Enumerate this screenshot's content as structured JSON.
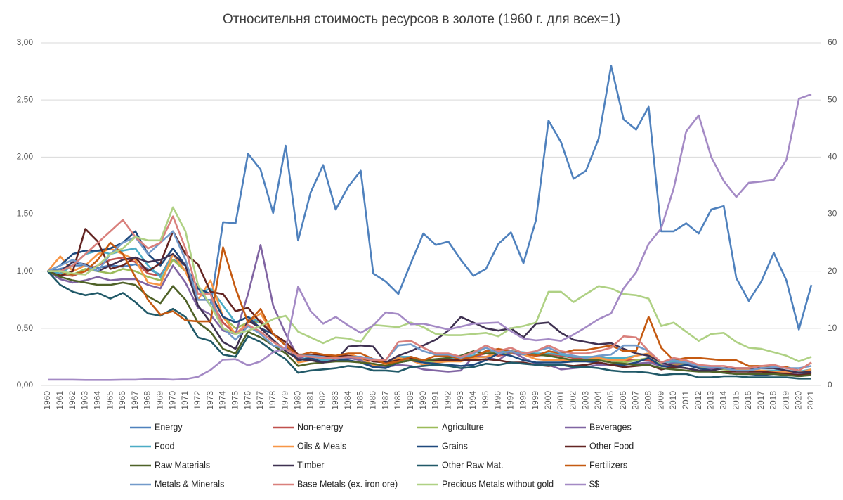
{
  "chart_data": {
    "type": "line",
    "title": "Относительня стоимость ресурсов в золоте (1960 г. для всех=1)",
    "categories": [
      "1960",
      "1961",
      "1962",
      "1963",
      "1964",
      "1965",
      "1966",
      "1967",
      "1968",
      "1969",
      "1970",
      "1971",
      "1972",
      "1973",
      "1974",
      "1975",
      "1976",
      "1977",
      "1978",
      "1979",
      "1980",
      "1981",
      "1982",
      "1983",
      "1984",
      "1985",
      "1986",
      "1987",
      "1988",
      "1989",
      "1990",
      "1991",
      "1992",
      "1993",
      "1994",
      "1995",
      "1996",
      "1997",
      "1998",
      "1999",
      "2000",
      "2001",
      "2002",
      "2003",
      "2004",
      "2005",
      "2006",
      "2007",
      "2008",
      "2009",
      "2010",
      "2011",
      "2012",
      "2013",
      "2014",
      "2015",
      "2016",
      "2017",
      "2018",
      "2019",
      "2020",
      "2021"
    ],
    "ylim": [
      0,
      3
    ],
    "yticks": [
      {
        "value": 0,
        "label": "0,00"
      },
      {
        "value": 0.5,
        "label": "0,50"
      },
      {
        "value": 1,
        "label": "1,00"
      },
      {
        "value": 1.5,
        "label": "1,50"
      },
      {
        "value": 2,
        "label": "2,00"
      },
      {
        "value": 2.5,
        "label": "2,50"
      },
      {
        "value": 3,
        "label": "3,00"
      }
    ],
    "y2lim": [
      0,
      60
    ],
    "y2ticks": [
      0,
      10,
      20,
      30,
      40,
      50,
      60
    ],
    "grid": true,
    "legend": "bottom",
    "series": [
      {
        "name": "Energy",
        "color": "#4f81bd",
        "values": [
          1,
          1.02,
          1.05,
          1.05,
          1.03,
          1.05,
          1.04,
          1.06,
          1.02,
          0.97,
          1.1,
          1.05,
          0.85,
          0.7,
          1.43,
          1.42,
          2.03,
          1.89,
          1.51,
          2.1,
          1.27,
          1.69,
          1.93,
          1.54,
          1.74,
          1.88,
          0.98,
          0.91,
          0.8,
          1.07,
          1.33,
          1.23,
          1.26,
          1.1,
          0.96,
          1.02,
          1.24,
          1.34,
          1.07,
          1.45,
          2.32,
          2.13,
          1.81,
          1.88,
          2.16,
          2.8,
          2.33,
          2.24,
          2.44,
          1.35,
          1.35,
          1.42,
          1.33,
          1.54,
          1.57,
          0.94,
          0.74,
          0.91,
          1.16,
          0.92,
          0.49,
          0.88
        ]
      },
      {
        "name": "Non-energy",
        "color": "#c0504d",
        "values": [
          1,
          0.97,
          0.96,
          1,
          1.05,
          1.1,
          1.12,
          1.08,
          0.98,
          0.96,
          1.15,
          1,
          0.75,
          0.75,
          0.55,
          0.45,
          0.55,
          0.57,
          0.45,
          0.35,
          0.23,
          0.24,
          0.22,
          0.24,
          0.25,
          0.24,
          0.22,
          0.2,
          0.24,
          0.25,
          0.22,
          0.22,
          0.23,
          0.22,
          0.25,
          0.28,
          0.26,
          0.28,
          0.27,
          0.26,
          0.27,
          0.26,
          0.24,
          0.24,
          0.25,
          0.24,
          0.22,
          0.22,
          0.22,
          0.17,
          0.18,
          0.18,
          0.15,
          0.15,
          0.15,
          0.13,
          0.13,
          0.13,
          0.13,
          0.12,
          0.11,
          0.13
        ]
      },
      {
        "name": "Agriculture",
        "color": "#9bbb59",
        "values": [
          1,
          0.98,
          0.97,
          1.02,
          1,
          0.98,
          1.02,
          1,
          0.95,
          0.92,
          1.1,
          1,
          0.8,
          0.8,
          0.6,
          0.5,
          0.55,
          0.55,
          0.45,
          0.35,
          0.22,
          0.24,
          0.22,
          0.23,
          0.24,
          0.23,
          0.22,
          0.2,
          0.22,
          0.22,
          0.21,
          0.21,
          0.22,
          0.23,
          0.26,
          0.3,
          0.28,
          0.29,
          0.28,
          0.27,
          0.26,
          0.24,
          0.22,
          0.22,
          0.23,
          0.22,
          0.2,
          0.22,
          0.24,
          0.18,
          0.19,
          0.19,
          0.16,
          0.15,
          0.14,
          0.13,
          0.12,
          0.12,
          0.12,
          0.12,
          0.11,
          0.13
        ]
      },
      {
        "name": "Beverages",
        "color": "#8064a2",
        "values": [
          1,
          0.93,
          0.9,
          0.92,
          0.95,
          0.92,
          0.93,
          0.93,
          0.88,
          0.85,
          1.05,
          0.9,
          0.68,
          0.62,
          0.48,
          0.45,
          0.8,
          1.23,
          0.7,
          0.45,
          0.25,
          0.22,
          0.22,
          0.22,
          0.24,
          0.22,
          0.17,
          0.16,
          0.18,
          0.17,
          0.14,
          0.13,
          0.12,
          0.13,
          0.25,
          0.25,
          0.22,
          0.3,
          0.24,
          0.19,
          0.18,
          0.14,
          0.15,
          0.16,
          0.18,
          0.18,
          0.18,
          0.19,
          0.2,
          0.17,
          0.2,
          0.2,
          0.15,
          0.14,
          0.15,
          0.13,
          0.12,
          0.12,
          0.11,
          0.11,
          0.1,
          0.12
        ]
      },
      {
        "name": "Food",
        "color": "#4bacc6",
        "values": [
          1,
          0.98,
          1.05,
          1.15,
          1.18,
          1.15,
          1.18,
          1.2,
          1.05,
          0.95,
          1.15,
          1,
          0.8,
          0.85,
          0.7,
          0.55,
          0.6,
          0.55,
          0.45,
          0.38,
          0.22,
          0.25,
          0.22,
          0.23,
          0.25,
          0.25,
          0.22,
          0.2,
          0.25,
          0.25,
          0.22,
          0.22,
          0.23,
          0.24,
          0.26,
          0.3,
          0.3,
          0.3,
          0.29,
          0.28,
          0.28,
          0.27,
          0.25,
          0.25,
          0.25,
          0.24,
          0.24,
          0.26,
          0.28,
          0.2,
          0.21,
          0.2,
          0.17,
          0.16,
          0.15,
          0.14,
          0.14,
          0.13,
          0.13,
          0.13,
          0.12,
          0.14
        ]
      },
      {
        "name": "Oils & Meals",
        "color": "#f79646",
        "values": [
          1,
          1.13,
          1,
          1.05,
          1.15,
          1.2,
          1.15,
          1.1,
          0.9,
          0.88,
          1.15,
          1,
          0.75,
          0.92,
          0.6,
          0.45,
          0.55,
          0.63,
          0.45,
          0.38,
          0.2,
          0.22,
          0.2,
          0.22,
          0.28,
          0.24,
          0.18,
          0.18,
          0.24,
          0.22,
          0.18,
          0.2,
          0.21,
          0.21,
          0.24,
          0.25,
          0.28,
          0.3,
          0.27,
          0.23,
          0.22,
          0.22,
          0.22,
          0.23,
          0.24,
          0.22,
          0.22,
          0.26,
          0.28,
          0.2,
          0.22,
          0.21,
          0.18,
          0.16,
          0.15,
          0.14,
          0.14,
          0.13,
          0.12,
          0.12,
          0.11,
          0.14
        ]
      },
      {
        "name": "Grains",
        "color": "#1f497d",
        "values": [
          1,
          1.05,
          1.15,
          1.18,
          1.18,
          1.2,
          1.25,
          1.35,
          1.15,
          1.05,
          1.2,
          1.05,
          0.85,
          0.8,
          0.6,
          0.55,
          0.6,
          0.5,
          0.45,
          0.35,
          0.22,
          0.24,
          0.2,
          0.22,
          0.22,
          0.2,
          0.16,
          0.15,
          0.2,
          0.22,
          0.2,
          0.19,
          0.18,
          0.17,
          0.18,
          0.22,
          0.28,
          0.26,
          0.22,
          0.2,
          0.2,
          0.2,
          0.21,
          0.21,
          0.2,
          0.18,
          0.18,
          0.2,
          0.24,
          0.17,
          0.16,
          0.18,
          0.15,
          0.13,
          0.11,
          0.1,
          0.1,
          0.09,
          0.1,
          0.1,
          0.09,
          0.11
        ]
      },
      {
        "name": "Other Food",
        "color": "#632523",
        "values": [
          1,
          0.96,
          1,
          1.37,
          1.26,
          1.02,
          1.05,
          1.12,
          1,
          1.07,
          1.35,
          1.15,
          1.06,
          0.82,
          0.8,
          0.65,
          0.68,
          0.55,
          0.45,
          0.38,
          0.27,
          0.27,
          0.26,
          0.26,
          0.26,
          0.24,
          0.21,
          0.2,
          0.22,
          0.24,
          0.22,
          0.22,
          0.22,
          0.22,
          0.22,
          0.23,
          0.22,
          0.2,
          0.2,
          0.18,
          0.17,
          0.18,
          0.17,
          0.18,
          0.2,
          0.18,
          0.16,
          0.17,
          0.18,
          0.14,
          0.16,
          0.15,
          0.13,
          0.12,
          0.12,
          0.12,
          0.12,
          0.12,
          0.11,
          0.1,
          0.09,
          0.1
        ]
      },
      {
        "name": "Raw Materials",
        "color": "#4f6228",
        "values": [
          1,
          0.95,
          0.92,
          0.9,
          0.88,
          0.88,
          0.9,
          0.88,
          0.78,
          0.72,
          0.87,
          0.75,
          0.55,
          0.47,
          0.32,
          0.28,
          0.47,
          0.42,
          0.35,
          0.28,
          0.17,
          0.19,
          0.2,
          0.21,
          0.21,
          0.2,
          0.19,
          0.17,
          0.2,
          0.22,
          0.22,
          0.23,
          0.24,
          0.26,
          0.3,
          0.28,
          0.28,
          0.3,
          0.28,
          0.27,
          0.26,
          0.24,
          0.22,
          0.22,
          0.22,
          0.2,
          0.19,
          0.18,
          0.18,
          0.15,
          0.14,
          0.13,
          0.12,
          0.12,
          0.11,
          0.1,
          0.1,
          0.1,
          0.1,
          0.09,
          0.08,
          0.09
        ]
      },
      {
        "name": "Timber",
        "color": "#3f3151",
        "values": [
          1,
          1,
          1.08,
          1.06,
          1,
          1.05,
          1.1,
          1.12,
          1.08,
          1.1,
          1.15,
          1.05,
          0.7,
          0.55,
          0.38,
          0.32,
          0.57,
          0.5,
          0.4,
          0.3,
          0.23,
          0.22,
          0.2,
          0.22,
          0.34,
          0.35,
          0.34,
          0.2,
          0.26,
          0.3,
          0.35,
          0.4,
          0.48,
          0.6,
          0.55,
          0.5,
          0.48,
          0.5,
          0.42,
          0.54,
          0.55,
          0.46,
          0.4,
          0.38,
          0.36,
          0.37,
          0.32,
          0.28,
          0.26,
          0.2,
          0.17,
          0.15,
          0.13,
          0.13,
          0.15,
          0.15,
          0.15,
          0.15,
          0.15,
          0.13,
          0.11,
          0.12
        ]
      },
      {
        "name": "Other Raw Mat.",
        "color": "#215968",
        "values": [
          1,
          0.88,
          0.82,
          0.79,
          0.81,
          0.76,
          0.81,
          0.73,
          0.63,
          0.61,
          0.67,
          0.6,
          0.42,
          0.39,
          0.27,
          0.25,
          0.43,
          0.38,
          0.3,
          0.23,
          0.11,
          0.13,
          0.14,
          0.15,
          0.17,
          0.16,
          0.13,
          0.13,
          0.12,
          0.16,
          0.17,
          0.18,
          0.17,
          0.15,
          0.16,
          0.19,
          0.18,
          0.2,
          0.19,
          0.18,
          0.18,
          0.18,
          0.16,
          0.16,
          0.15,
          0.13,
          0.12,
          0.12,
          0.11,
          0.09,
          0.1,
          0.1,
          0.07,
          0.07,
          0.08,
          0.08,
          0.07,
          0.07,
          0.07,
          0.07,
          0.06,
          0.06
        ]
      },
      {
        "name": "Fertilizers",
        "color": "#c55a11",
        "values": [
          1,
          1,
          0.97,
          1,
          1.1,
          1.25,
          1.15,
          0.95,
          0.75,
          0.62,
          0.65,
          0.57,
          0.56,
          0.56,
          1.21,
          0.85,
          0.55,
          0.67,
          0.45,
          0.35,
          0.26,
          0.29,
          0.27,
          0.26,
          0.28,
          0.28,
          0.23,
          0.19,
          0.21,
          0.25,
          0.22,
          0.26,
          0.26,
          0.23,
          0.25,
          0.3,
          0.32,
          0.3,
          0.28,
          0.26,
          0.3,
          0.28,
          0.31,
          0.31,
          0.33,
          0.35,
          0.3,
          0.3,
          0.6,
          0.33,
          0.22,
          0.24,
          0.24,
          0.23,
          0.22,
          0.22,
          0.17,
          0.17,
          0.17,
          0.16,
          0.13,
          0.2
        ]
      },
      {
        "name": "Metals  & Minerals",
        "color": "#729aca",
        "values": [
          1,
          1.05,
          1.1,
          1.05,
          1,
          1.15,
          1.25,
          1.3,
          1.15,
          1.25,
          1.35,
          1.1,
          0.75,
          0.75,
          0.5,
          0.4,
          0.52,
          0.45,
          0.35,
          0.32,
          0.26,
          0.26,
          0.25,
          0.23,
          0.25,
          0.25,
          0.23,
          0.22,
          0.35,
          0.36,
          0.3,
          0.27,
          0.27,
          0.24,
          0.28,
          0.33,
          0.28,
          0.3,
          0.27,
          0.3,
          0.33,
          0.28,
          0.26,
          0.24,
          0.26,
          0.27,
          0.35,
          0.35,
          0.3,
          0.2,
          0.22,
          0.2,
          0.17,
          0.16,
          0.15,
          0.13,
          0.13,
          0.15,
          0.16,
          0.15,
          0.15,
          0.17
        ]
      },
      {
        "name": "Base Metals (ex. iron ore)",
        "color": "#d9807c",
        "values": [
          1,
          1,
          1.05,
          1.15,
          1.25,
          1.35,
          1.45,
          1.3,
          1.2,
          1.25,
          1.48,
          1.2,
          0.8,
          0.8,
          0.5,
          0.45,
          0.53,
          0.47,
          0.38,
          0.32,
          0.26,
          0.25,
          0.24,
          0.24,
          0.25,
          0.24,
          0.22,
          0.22,
          0.38,
          0.39,
          0.33,
          0.28,
          0.28,
          0.25,
          0.29,
          0.35,
          0.3,
          0.33,
          0.28,
          0.3,
          0.35,
          0.3,
          0.28,
          0.28,
          0.3,
          0.33,
          0.43,
          0.42,
          0.3,
          0.2,
          0.24,
          0.22,
          0.18,
          0.17,
          0.17,
          0.15,
          0.15,
          0.17,
          0.18,
          0.15,
          0.13,
          0.2
        ]
      },
      {
        "name": "Precious Metals without gold",
        "color": "#afd184",
        "values": [
          1,
          1,
          0.98,
          0.97,
          1.05,
          1.15,
          1.2,
          1.3,
          1.27,
          1.27,
          1.56,
          1.35,
          0.88,
          0.7,
          0.5,
          0.45,
          0.48,
          0.52,
          0.58,
          0.61,
          0.47,
          0.42,
          0.37,
          0.42,
          0.41,
          0.38,
          0.53,
          0.52,
          0.51,
          0.55,
          0.51,
          0.45,
          0.44,
          0.44,
          0.45,
          0.46,
          0.43,
          0.5,
          0.52,
          0.55,
          0.82,
          0.82,
          0.73,
          0.8,
          0.87,
          0.85,
          0.8,
          0.79,
          0.76,
          0.52,
          0.55,
          0.47,
          0.39,
          0.45,
          0.46,
          0.38,
          0.33,
          0.32,
          0.29,
          0.26,
          0.21,
          0.25
        ]
      },
      {
        "name": "$$",
        "color": "#a48ac5",
        "axis": "y2",
        "values": [
          1,
          1,
          1,
          0.95,
          0.95,
          0.95,
          1,
          1,
          1.1,
          1.1,
          1,
          1.1,
          1.5,
          2.7,
          4.5,
          4.6,
          3.5,
          4.2,
          5.8,
          6.5,
          17.3,
          13,
          10.8,
          12,
          10.5,
          9.2,
          10.5,
          12.8,
          12.5,
          10.7,
          10.8,
          10.3,
          9.8,
          10.3,
          10.8,
          10.9,
          11,
          9.5,
          8.2,
          7.9,
          8.1,
          7.8,
          8.9,
          10.2,
          11.6,
          12.6,
          17,
          19.8,
          24.8,
          27.5,
          34.5,
          44.5,
          47.3,
          40,
          35.8,
          33,
          35.5,
          35.7,
          36,
          39.5,
          50.2,
          51
        ]
      }
    ]
  }
}
